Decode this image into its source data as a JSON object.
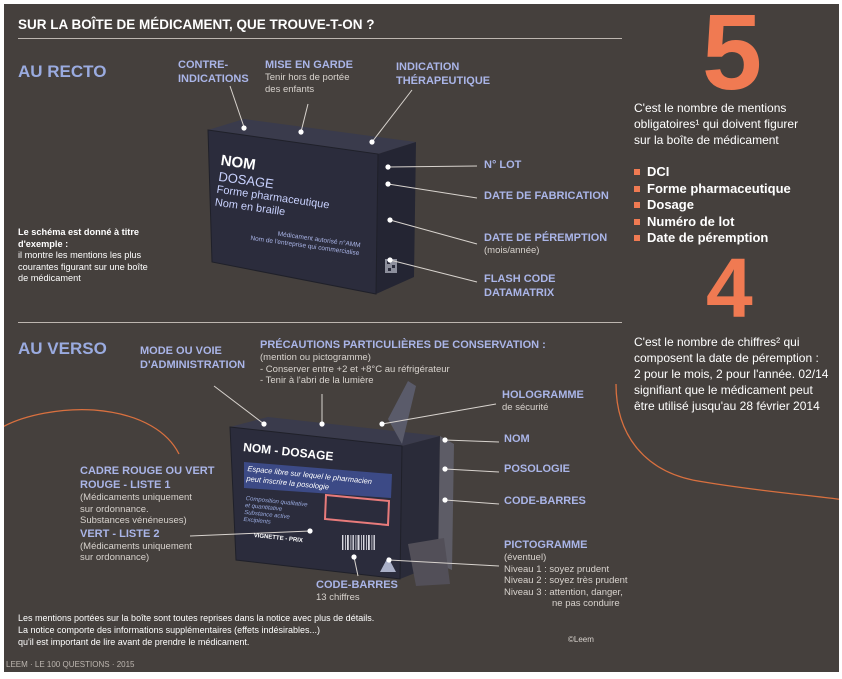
{
  "title": "SUR LA BOÎTE DE MÉDICAMENT, QUE TROUVE-T-ON ?",
  "recto": {
    "heading": "AU RECTO",
    "labels": {
      "contre": [
        "CONTRE-",
        "INDICATIONS"
      ],
      "mise": "MISE EN GARDE",
      "mise_sub": [
        "Tenir hors de portée",
        "des enfants"
      ],
      "indication": [
        "INDICATION",
        "THÉRAPEUTIQUE"
      ],
      "lot": "N° LOT",
      "fabrication": "DATE DE FABRICATION",
      "peremption": "DATE DE PÉREMPTION",
      "peremption_sub": "(mois/année)",
      "flash": [
        "FLASH CODE",
        "DATAMATRIX"
      ]
    },
    "box": {
      "nom": "NOM",
      "dosage": "DOSAGE",
      "forme": "Forme pharmaceutique",
      "braille": "Nom en braille",
      "amm": "Médicament autorisé n°AMM",
      "entreprise": "Nom de l'entreprise qui commercialise"
    },
    "note_bold": [
      "Le schéma est donné à titre",
      "d'exemple :"
    ],
    "note": [
      "il montre les mentions les plus",
      "courantes figurant sur une boîte",
      "de médicament"
    ]
  },
  "verso": {
    "heading": "AU VERSO",
    "labels": {
      "mode": [
        "MODE OU VOIE",
        "D'ADMINISTRATION"
      ],
      "precautions": "PRÉCAUTIONS PARTICULIÈRES DE CONSERVATION :",
      "precautions_sub": [
        "(mention ou pictogramme)",
        "- Conserver entre +2 et +8°C au réfrigérateur",
        "- Tenir à l'abri de la lumière"
      ],
      "hologramme": "HOLOGRAMME",
      "hologramme_sub": "de sécurité",
      "nom": "NOM",
      "posologie": "POSOLOGIE",
      "codebarres": "CODE-BARRES",
      "pictogramme": "PICTOGRAMME",
      "pictogramme_sub": [
        "(éventuel)",
        "Niveau 1 :  soyez prudent",
        "Niveau 2 :  soyez très prudent",
        "Niveau 3 :  attention, danger,",
        "ne pas conduire"
      ],
      "cadre": [
        "CADRE ROUGE OU VERT",
        "ROUGE - LISTE 1"
      ],
      "cadre_sub": [
        "(Médicaments uniquement",
        "sur ordonnance.",
        "Substances vénéneuses)"
      ],
      "vert": "VERT - LISTE 2",
      "vert_sub": [
        "(Médicaments uniquement",
        "sur ordonnance)"
      ],
      "codebarres_bottom": "CODE-BARRES",
      "codebarres_bottom_sub": "13 chiffres"
    },
    "box": {
      "nom_dosage": "NOM - DOSAGE",
      "espace": [
        "Espace libre sur lequel le pharmacien",
        "peut inscrire la posologie"
      ],
      "composition": [
        "Composition qualitative",
        "et quantitative",
        "Substance active",
        "Excipients"
      ],
      "vignette": "VIGNETTE - PRIX"
    }
  },
  "side": {
    "five": "5",
    "five_text": [
      "C'est le nombre de mentions",
      "obligatoires¹ qui doivent figurer",
      "sur la boîte de médicament"
    ],
    "items": [
      "DCI",
      "Forme pharmaceutique",
      "Dosage",
      "Numéro de lot",
      "Date de péremption"
    ],
    "four": "4",
    "four_text": [
      "C'est le nombre de chiffres² qui",
      "composent la date de péremption :",
      "2 pour le mois, 2 pour l'année. 02/14",
      "signifiant que le médicament peut",
      "être utilisé jusqu'au 28 février 2014"
    ]
  },
  "footer": {
    "lines": [
      "Les mentions portées sur la boîte sont toutes reprises dans la notice avec plus de détails.",
      "La notice comporte des informations supplémentaires (effets indésirables...)",
      "qu'il est important de lire avant de prendre le médicament."
    ],
    "copyright": "©Leem",
    "credit": "LEEM · LE 100 QUESTIONS · 2015"
  },
  "colors": {
    "background": "#45403d",
    "accent": "#f07a52",
    "label": "#aab5e8",
    "box": "#2b2c3c"
  }
}
